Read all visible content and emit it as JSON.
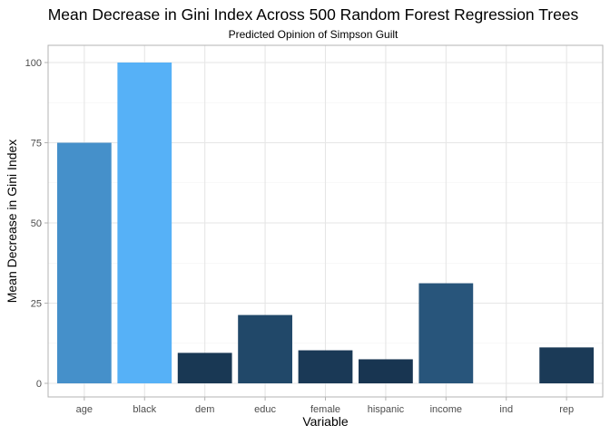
{
  "chart_data": {
    "type": "bar",
    "title": "Mean Decrease in Gini Index Across 500 Random Forest Regression Trees",
    "subtitle": "Predicted Opinion of Simpson Guilt",
    "xlabel": "Variable",
    "ylabel": "Mean Decrease in Gini Index",
    "categories": [
      "age",
      "black",
      "dem",
      "educ",
      "female",
      "hispanic",
      "income",
      "ind",
      "rep"
    ],
    "values": [
      75,
      100,
      9.5,
      21.3,
      10.3,
      7.5,
      31.2,
      0,
      11.2
    ],
    "ylim": [
      0,
      100
    ],
    "yticks": [
      0,
      25,
      50,
      75,
      100
    ],
    "grid": true,
    "color_scale": {
      "low": "#132B43",
      "high": "#56B1F7"
    }
  }
}
